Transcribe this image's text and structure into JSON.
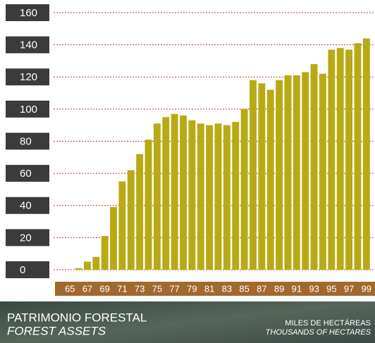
{
  "chart_data": {
    "type": "bar",
    "title": "PATRIMONIO FORESTAL",
    "subtitle": "FOREST ASSETS",
    "unit_label": "MILES DE HECTÁREAS",
    "unit_label_en": "THOUSANDS OF HECTARES",
    "categories": [
      "65",
      null,
      "67",
      null,
      "69",
      null,
      "71",
      null,
      "73",
      null,
      "75",
      null,
      "77",
      null,
      "79",
      null,
      "81",
      null,
      "83",
      null,
      "85",
      null,
      "87",
      null,
      "89",
      null,
      "91",
      null,
      "93",
      null,
      "95",
      null,
      "97",
      null,
      "99"
    ],
    "values": [
      0,
      1,
      5,
      8,
      21,
      39,
      55,
      62,
      72,
      81,
      91,
      95,
      97,
      96,
      93,
      91,
      90,
      91,
      90,
      92,
      100,
      118,
      116,
      112,
      118,
      121,
      121,
      123,
      128,
      122,
      137,
      138,
      137,
      141,
      144
    ],
    "color": "#b8aa14",
    "ylim": [
      0,
      160
    ],
    "yticks": [
      0,
      20,
      40,
      60,
      80,
      100,
      120,
      140,
      160
    ],
    "grid": true
  }
}
